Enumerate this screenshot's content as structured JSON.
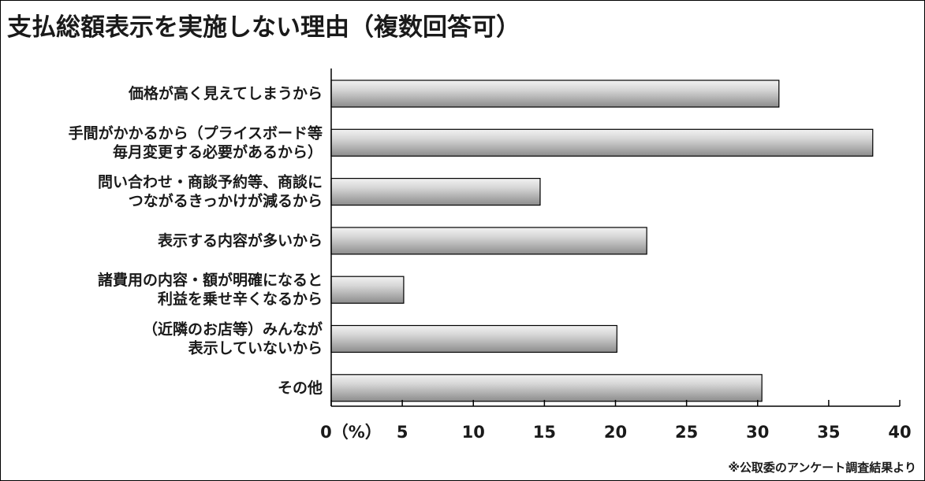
{
  "chart_data": {
    "type": "bar",
    "orientation": "horizontal",
    "title": "支払総額表示を実施しない理由（複数回答可）",
    "categories": [
      [
        "価格が高く見えてしまうから"
      ],
      [
        "手間がかかるから（プライスボード等",
        "毎月変更する必要があるから）"
      ],
      [
        "問い合わせ・商談予約等、商談に",
        "つながるきっかけが減るから"
      ],
      [
        "表示する内容が多いから"
      ],
      [
        "諸費用の内容・額が明確になると",
        "利益を乗せ辛くなるから"
      ],
      [
        "（近隣のお店等）みんなが",
        "表示していないから"
      ],
      [
        "その他"
      ]
    ],
    "values": [
      31.5,
      38.1,
      14.7,
      22.2,
      5.1,
      20.1,
      30.3
    ],
    "xlim": [
      0,
      40
    ],
    "x_ticks": [
      "0（%）",
      "5",
      "10",
      "15",
      "20",
      "25",
      "30",
      "35",
      "40"
    ],
    "grid": false,
    "bar_style": "gray-gradient",
    "colors": {
      "bar_light": "#f2f2f2",
      "bar_dark": "#8c8c8c",
      "outline": "#000000",
      "text": "#1a1a1a"
    }
  },
  "source_note": "※公取委のアンケート調査結果より"
}
